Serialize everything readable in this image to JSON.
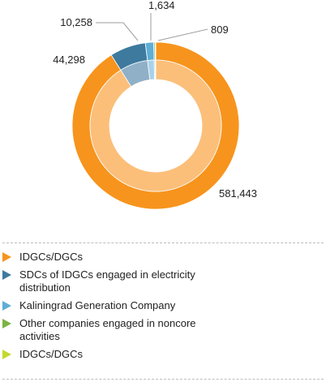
{
  "chart_data": {
    "type": "pie",
    "donut": true,
    "categories": [
      "IDGCs/DGCs",
      "SDCs of IDGCs engaged in electricity distribution",
      "Kaliningrad Generation Company",
      "Other companies engaged in noncore activities",
      "IDGCs/DGCs"
    ],
    "values": [
      581443,
      44298,
      10258,
      1634,
      809
    ],
    "value_labels": [
      "581,443",
      "44,298",
      "10,258",
      "1,634",
      "809"
    ],
    "colors": [
      "#f7941d",
      "#3d7a9e",
      "#5eaed6",
      "#7cb342",
      "#c5d82e"
    ],
    "inner_colors": [
      "#fbbf7a",
      "#8fb0c7",
      "#a8d2ea",
      "#b3d48e",
      "#e1eb92"
    ],
    "title": "",
    "legend_position": "bottom"
  }
}
